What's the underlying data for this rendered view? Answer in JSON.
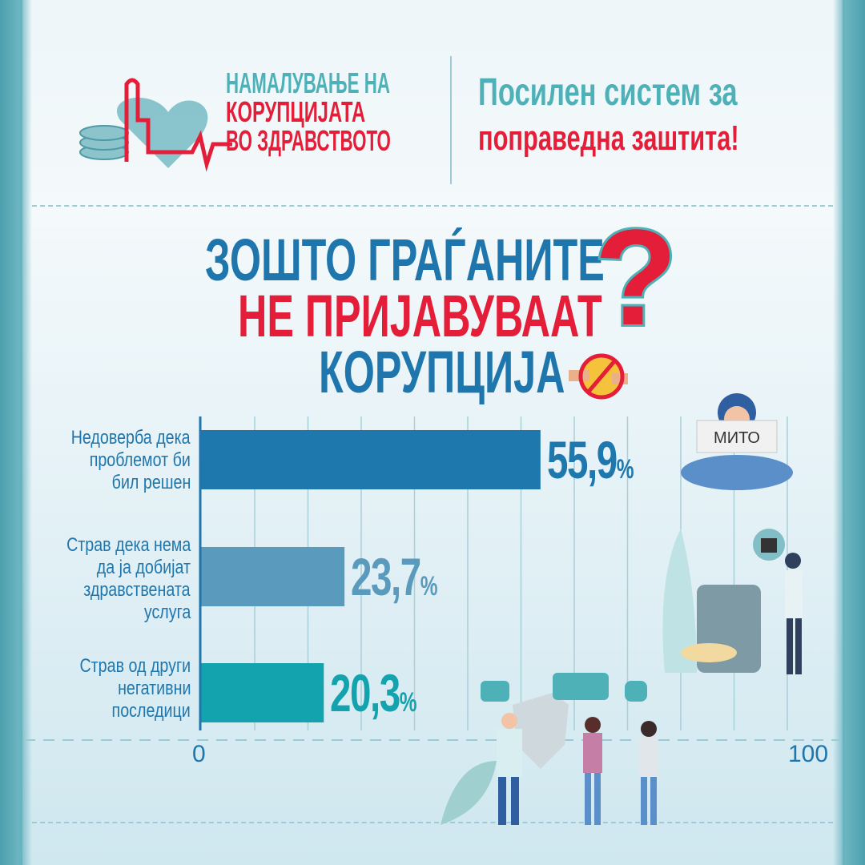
{
  "header": {
    "logo_lines": [
      "НАМАЛУВАЊЕ НА",
      "КОРУПЦИЈАТА",
      "ВО ЗДРАВСТВОТО"
    ],
    "slogan_line1": "Посилен систем за",
    "slogan_line2": "поправедна заштита!"
  },
  "title": {
    "line1": "ЗОШТО ГРАЃАНИТЕ",
    "line2": "НЕ ПРИЈАВУВААТ",
    "line3": "КОРУПЦИЈА",
    "question_mark": "?"
  },
  "illustration": {
    "sign_text": "МИТО"
  },
  "colors": {
    "blue": "#1f76ad",
    "red": "#e41e38",
    "teal": "#4fb1b8"
  },
  "chart_data": {
    "type": "bar",
    "orientation": "horizontal",
    "categories": [
      "Недоверба дека проблемот би бил решен",
      "Страв дека нема да ја добијат здравствената услуга",
      "Страв од други негативни последици"
    ],
    "category_lines": [
      [
        "Недоверба дека",
        "проблемот би",
        "бил решен"
      ],
      [
        "Страв дека нема",
        "да ја добијат",
        "здравствената",
        "услуга"
      ],
      [
        "Страв од други",
        "негативни",
        "последици"
      ]
    ],
    "values": [
      55.9,
      23.7,
      20.3
    ],
    "value_labels": [
      "55,9",
      "23,7",
      "20,3"
    ],
    "unit": "%",
    "bar_colors": [
      "#1f78ad",
      "#5a9bbd",
      "#12a3ae"
    ],
    "xlim": [
      0,
      100
    ],
    "tick_labels": [
      "0",
      "100"
    ],
    "grid": true
  }
}
